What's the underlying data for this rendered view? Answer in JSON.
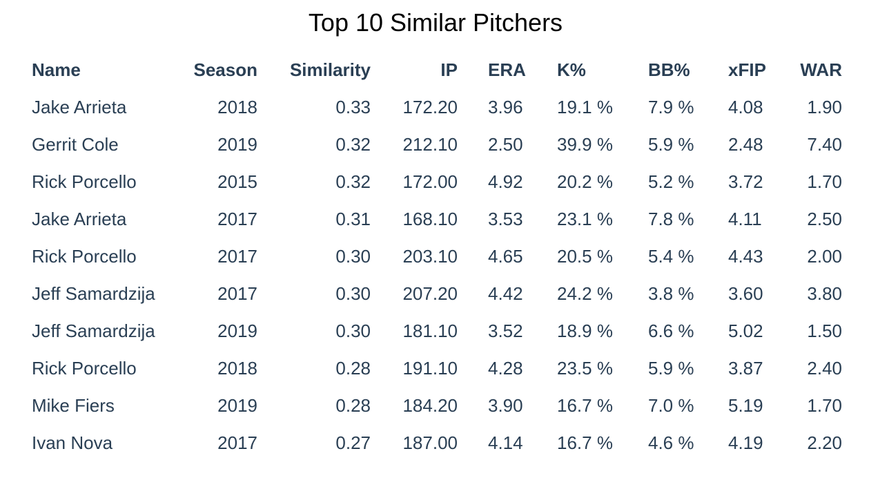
{
  "chart_data": {
    "type": "table",
    "title": "Top 10 Similar Pitchers",
    "columns": [
      "Name",
      "Season",
      "Similarity",
      "IP",
      "ERA",
      "K%",
      "BB%",
      "xFIP",
      "WAR"
    ],
    "rows": [
      [
        "Jake Arrieta",
        "2018",
        "0.33",
        "172.20",
        "3.96",
        "19.1 %",
        "7.9 %",
        "4.08",
        "1.90"
      ],
      [
        "Gerrit Cole",
        "2019",
        "0.32",
        "212.10",
        "2.50",
        "39.9 %",
        "5.9 %",
        "2.48",
        "7.40"
      ],
      [
        "Rick Porcello",
        "2015",
        "0.32",
        "172.00",
        "4.92",
        "20.2 %",
        "5.2 %",
        "3.72",
        "1.70"
      ],
      [
        "Jake Arrieta",
        "2017",
        "0.31",
        "168.10",
        "3.53",
        "23.1 %",
        "7.8 %",
        "4.11",
        "2.50"
      ],
      [
        "Rick Porcello",
        "2017",
        "0.30",
        "203.10",
        "4.65",
        "20.5 %",
        "5.4 %",
        "4.43",
        "2.00"
      ],
      [
        "Jeff Samardzija",
        "2017",
        "0.30",
        "207.20",
        "4.42",
        "24.2 %",
        "3.8 %",
        "3.60",
        "3.80"
      ],
      [
        "Jeff Samardzija",
        "2019",
        "0.30",
        "181.10",
        "3.52",
        "18.9 %",
        "6.6 %",
        "5.02",
        "1.50"
      ],
      [
        "Rick Porcello",
        "2018",
        "0.28",
        "191.10",
        "4.28",
        "23.5 %",
        "5.9 %",
        "3.87",
        "2.40"
      ],
      [
        "Mike Fiers",
        "2019",
        "0.28",
        "184.20",
        "3.90",
        "16.7 %",
        "7.0 %",
        "5.19",
        "1.70"
      ],
      [
        "Ivan Nova",
        "2017",
        "0.27",
        "187.00",
        "4.14",
        "16.7 %",
        "4.6 %",
        "4.19",
        "2.20"
      ]
    ],
    "text_color": "#2a3f54",
    "title_color": "#000000"
  }
}
